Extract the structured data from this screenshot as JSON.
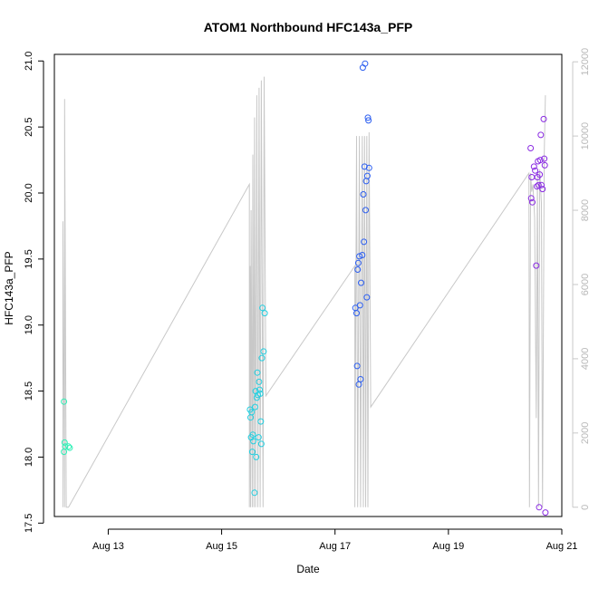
{
  "chart_data": {
    "type": "scatter",
    "title": "ATOM1 Northbound HFC143a_PFP",
    "xlabel": "Date",
    "ylabel": "HFC143a_PFP",
    "x_ticks": [
      "Aug 13",
      "Aug 15",
      "Aug 17",
      "Aug 19",
      "Aug 21"
    ],
    "x_tick_days": [
      13,
      15,
      17,
      19,
      21
    ],
    "xlim": [
      12.05,
      21.0
    ],
    "ylim": [
      17.55,
      21.05
    ],
    "y_ticks": [
      17.5,
      18.0,
      18.5,
      19.0,
      19.5,
      20.0,
      20.5,
      21.0
    ],
    "y2_lim": [
      -250,
      12200
    ],
    "y2_ticks": [
      0,
      2000,
      4000,
      6000,
      8000,
      10000,
      12000
    ],
    "y2_color": "#c8c8c8",
    "line_color": "#c8c8c8",
    "grid": false,
    "series_points": [
      {
        "x": 12.22,
        "y": 18.42,
        "color": "#2ff0b6"
      },
      {
        "x": 12.22,
        "y": 18.04,
        "color": "#2ff0b6"
      },
      {
        "x": 12.23,
        "y": 18.11,
        "color": "#2ff0b6"
      },
      {
        "x": 12.24,
        "y": 18.08,
        "color": "#2ff0b6"
      },
      {
        "x": 12.3,
        "y": 18.08,
        "color": "#2ff0b6"
      },
      {
        "x": 12.32,
        "y": 18.07,
        "color": "#2ff0b6"
      },
      {
        "x": 15.5,
        "y": 18.36,
        "color": "#24cfe0"
      },
      {
        "x": 15.51,
        "y": 18.3,
        "color": "#24cfe0"
      },
      {
        "x": 15.52,
        "y": 18.15,
        "color": "#24cfe0"
      },
      {
        "x": 15.53,
        "y": 18.34,
        "color": "#24cfe0"
      },
      {
        "x": 15.54,
        "y": 18.04,
        "color": "#24cfe0"
      },
      {
        "x": 15.55,
        "y": 18.17,
        "color": "#24cfe0"
      },
      {
        "x": 15.56,
        "y": 18.12,
        "color": "#24cfe0"
      },
      {
        "x": 15.58,
        "y": 17.73,
        "color": "#24cfe0"
      },
      {
        "x": 15.59,
        "y": 18.38,
        "color": "#24cfe0"
      },
      {
        "x": 15.6,
        "y": 18.5,
        "color": "#24cfe0"
      },
      {
        "x": 15.61,
        "y": 18.0,
        "color": "#24cfe0"
      },
      {
        "x": 15.62,
        "y": 18.45,
        "color": "#24cfe0"
      },
      {
        "x": 15.63,
        "y": 18.64,
        "color": "#24cfe0"
      },
      {
        "x": 15.64,
        "y": 18.47,
        "color": "#24cfe0"
      },
      {
        "x": 15.65,
        "y": 18.15,
        "color": "#24cfe0"
      },
      {
        "x": 15.66,
        "y": 18.57,
        "color": "#24cfe0"
      },
      {
        "x": 15.67,
        "y": 18.51,
        "color": "#24cfe0"
      },
      {
        "x": 15.68,
        "y": 18.48,
        "color": "#24cfe0"
      },
      {
        "x": 15.69,
        "y": 18.27,
        "color": "#24cfe0"
      },
      {
        "x": 15.7,
        "y": 18.1,
        "color": "#24cfe0"
      },
      {
        "x": 15.71,
        "y": 18.75,
        "color": "#24cfe0"
      },
      {
        "x": 15.72,
        "y": 19.13,
        "color": "#24cfe0"
      },
      {
        "x": 15.74,
        "y": 18.8,
        "color": "#24cfe0"
      },
      {
        "x": 15.76,
        "y": 19.09,
        "color": "#24cfe0"
      },
      {
        "x": 17.36,
        "y": 19.13,
        "color": "#2d5ff0"
      },
      {
        "x": 17.38,
        "y": 19.09,
        "color": "#2d5ff0"
      },
      {
        "x": 17.39,
        "y": 18.69,
        "color": "#2d5ff0"
      },
      {
        "x": 17.4,
        "y": 19.42,
        "color": "#2d5ff0"
      },
      {
        "x": 17.41,
        "y": 19.47,
        "color": "#2d5ff0"
      },
      {
        "x": 17.42,
        "y": 18.55,
        "color": "#2d5ff0"
      },
      {
        "x": 17.43,
        "y": 19.52,
        "color": "#2d5ff0"
      },
      {
        "x": 17.44,
        "y": 19.15,
        "color": "#2d5ff0"
      },
      {
        "x": 17.45,
        "y": 18.59,
        "color": "#2d5ff0"
      },
      {
        "x": 17.46,
        "y": 19.32,
        "color": "#2d5ff0"
      },
      {
        "x": 17.48,
        "y": 19.53,
        "color": "#2d5ff0"
      },
      {
        "x": 17.49,
        "y": 20.95,
        "color": "#2d5ff0"
      },
      {
        "x": 17.5,
        "y": 19.99,
        "color": "#2d5ff0"
      },
      {
        "x": 17.51,
        "y": 19.63,
        "color": "#2d5ff0"
      },
      {
        "x": 17.52,
        "y": 20.2,
        "color": "#2d5ff0"
      },
      {
        "x": 17.53,
        "y": 20.98,
        "color": "#2d5ff0"
      },
      {
        "x": 17.54,
        "y": 19.87,
        "color": "#2d5ff0"
      },
      {
        "x": 17.55,
        "y": 20.09,
        "color": "#2d5ff0"
      },
      {
        "x": 17.56,
        "y": 19.21,
        "color": "#2d5ff0"
      },
      {
        "x": 17.57,
        "y": 20.13,
        "color": "#2d5ff0"
      },
      {
        "x": 17.58,
        "y": 20.57,
        "color": "#2d5ff0"
      },
      {
        "x": 17.59,
        "y": 20.55,
        "color": "#2d5ff0"
      },
      {
        "x": 17.6,
        "y": 20.19,
        "color": "#2d5ff0"
      },
      {
        "x": 20.45,
        "y": 20.34,
        "color": "#8a2be2"
      },
      {
        "x": 20.46,
        "y": 19.96,
        "color": "#8a2be2"
      },
      {
        "x": 20.47,
        "y": 20.12,
        "color": "#8a2be2"
      },
      {
        "x": 20.48,
        "y": 19.93,
        "color": "#8a2be2"
      },
      {
        "x": 20.51,
        "y": 20.2,
        "color": "#8a2be2"
      },
      {
        "x": 20.53,
        "y": 20.17,
        "color": "#8a2be2"
      },
      {
        "x": 20.55,
        "y": 19.45,
        "color": "#8a2be2"
      },
      {
        "x": 20.56,
        "y": 20.05,
        "color": "#8a2be2"
      },
      {
        "x": 20.57,
        "y": 20.12,
        "color": "#8a2be2"
      },
      {
        "x": 20.58,
        "y": 20.24,
        "color": "#8a2be2"
      },
      {
        "x": 20.59,
        "y": 20.06,
        "color": "#8a2be2"
      },
      {
        "x": 20.6,
        "y": 17.62,
        "color": "#8a2be2"
      },
      {
        "x": 20.61,
        "y": 20.14,
        "color": "#8a2be2"
      },
      {
        "x": 20.62,
        "y": 20.25,
        "color": "#8a2be2"
      },
      {
        "x": 20.63,
        "y": 20.44,
        "color": "#8a2be2"
      },
      {
        "x": 20.64,
        "y": 20.06,
        "color": "#8a2be2"
      },
      {
        "x": 20.66,
        "y": 20.03,
        "color": "#8a2be2"
      },
      {
        "x": 20.68,
        "y": 20.56,
        "color": "#8a2be2"
      },
      {
        "x": 20.69,
        "y": 20.26,
        "color": "#8a2be2"
      },
      {
        "x": 20.7,
        "y": 20.21,
        "color": "#8a2be2"
      },
      {
        "x": 20.71,
        "y": 17.58,
        "color": "#8a2be2"
      }
    ],
    "secondary_line": [
      {
        "x": 12.2,
        "y": 0
      },
      {
        "x": 12.2,
        "y": 7700
      },
      {
        "x": 12.23,
        "y": 0
      },
      {
        "x": 12.23,
        "y": 11000
      },
      {
        "x": 12.26,
        "y": 0
      },
      {
        "x": 12.3,
        "y": 0
      },
      {
        "x": 15.49,
        "y": 8700
      },
      {
        "x": 15.49,
        "y": 0
      },
      {
        "x": 15.5,
        "y": 6500
      },
      {
        "x": 15.51,
        "y": 0
      },
      {
        "x": 15.52,
        "y": 8000
      },
      {
        "x": 15.54,
        "y": 0
      },
      {
        "x": 15.55,
        "y": 9500
      },
      {
        "x": 15.57,
        "y": 0
      },
      {
        "x": 15.58,
        "y": 10500
      },
      {
        "x": 15.6,
        "y": 0
      },
      {
        "x": 15.62,
        "y": 11100
      },
      {
        "x": 15.64,
        "y": 0
      },
      {
        "x": 15.66,
        "y": 11300
      },
      {
        "x": 15.68,
        "y": 0
      },
      {
        "x": 15.7,
        "y": 11500
      },
      {
        "x": 15.73,
        "y": 0
      },
      {
        "x": 15.75,
        "y": 11600
      },
      {
        "x": 15.78,
        "y": 3000
      },
      {
        "x": 17.35,
        "y": 6500
      },
      {
        "x": 17.35,
        "y": 0
      },
      {
        "x": 17.38,
        "y": 10000
      },
      {
        "x": 17.4,
        "y": 0
      },
      {
        "x": 17.43,
        "y": 10000
      },
      {
        "x": 17.45,
        "y": 0
      },
      {
        "x": 17.48,
        "y": 10000
      },
      {
        "x": 17.5,
        "y": 0
      },
      {
        "x": 17.52,
        "y": 10000
      },
      {
        "x": 17.54,
        "y": 0
      },
      {
        "x": 17.56,
        "y": 10000
      },
      {
        "x": 17.58,
        "y": 0
      },
      {
        "x": 17.6,
        "y": 10100
      },
      {
        "x": 17.63,
        "y": 2700
      },
      {
        "x": 20.42,
        "y": 9000
      },
      {
        "x": 20.43,
        "y": 0
      },
      {
        "x": 20.45,
        "y": 9000
      },
      {
        "x": 20.47,
        "y": 8500
      },
      {
        "x": 20.49,
        "y": 8700
      },
      {
        "x": 20.52,
        "y": 7800
      },
      {
        "x": 20.55,
        "y": 2400
      },
      {
        "x": 20.57,
        "y": 9000
      },
      {
        "x": 20.59,
        "y": 0
      },
      {
        "x": 20.61,
        "y": 9100
      },
      {
        "x": 20.64,
        "y": 8200
      },
      {
        "x": 20.66,
        "y": 0
      },
      {
        "x": 20.69,
        "y": 9500
      },
      {
        "x": 20.71,
        "y": 11100
      }
    ]
  }
}
